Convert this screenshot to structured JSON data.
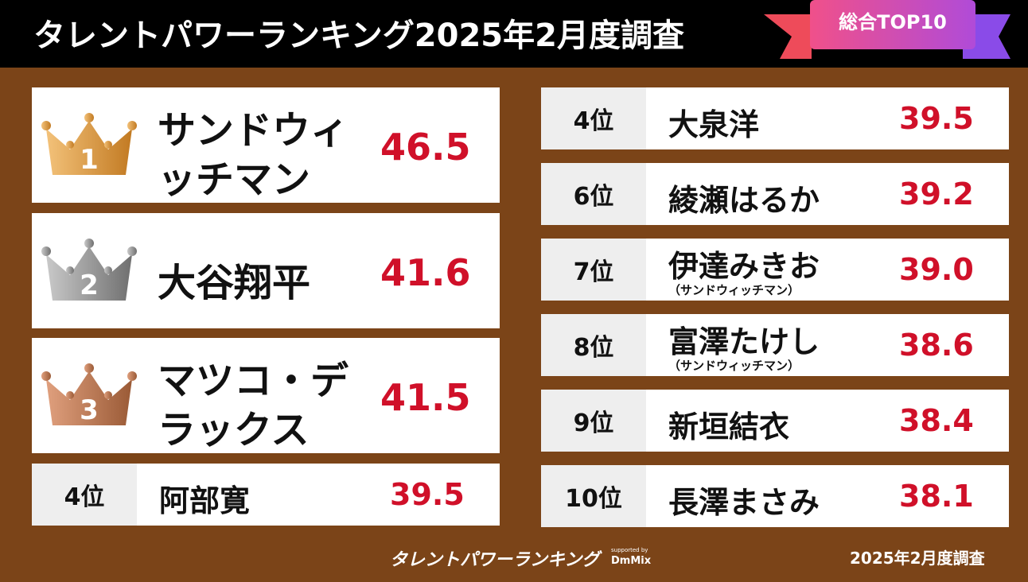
{
  "header": {
    "title": "タレントパワーランキング2025年2月度調査",
    "badge": "総合TOP10"
  },
  "top3": [
    {
      "rank": "1",
      "name_lines": [
        "サンドウィ",
        "ッチマン"
      ],
      "score": "46.5"
    },
    {
      "rank": "2",
      "name_lines": [
        "大谷翔平"
      ],
      "score": "41.6"
    },
    {
      "rank": "3",
      "name_lines": [
        "マツコ・デ",
        "ラックス"
      ],
      "score": "41.5"
    }
  ],
  "left_rows": [
    {
      "rank": "4位",
      "name": "阿部寛",
      "score": "39.5"
    }
  ],
  "right_rows": [
    {
      "rank": "4位",
      "name": "大泉洋",
      "score": "39.5"
    },
    {
      "rank": "6位",
      "name": "綾瀬はるか",
      "score": "39.2"
    },
    {
      "rank": "7位",
      "name": "伊達みきお",
      "note": "（サンドウィッチマン）",
      "score": "39.0"
    },
    {
      "rank": "8位",
      "name": "富澤たけし",
      "note": "（サンドウィッチマン）",
      "score": "38.6"
    },
    {
      "rank": "9位",
      "name": "新垣結衣",
      "score": "38.4"
    },
    {
      "rank": "10位",
      "name": "長澤まさみ",
      "score": "38.1"
    }
  ],
  "footer": {
    "logo": "タレントパワーランキング",
    "supported": "supported by",
    "sponsor": "DmMix",
    "date": "2025年2月度調査"
  }
}
